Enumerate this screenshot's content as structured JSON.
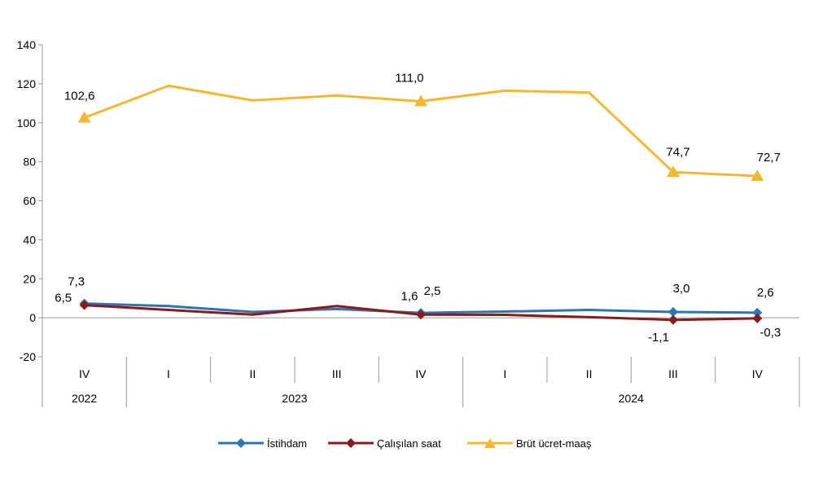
{
  "chart_data": {
    "type": "line",
    "title": "",
    "xlabel": "",
    "ylabel": "",
    "ylim": [
      -20,
      140
    ],
    "yticks": [
      -20,
      0,
      20,
      40,
      60,
      80,
      100,
      120,
      140
    ],
    "categories": [
      "IV",
      "I",
      "II",
      "III",
      "IV",
      "I",
      "II",
      "III",
      "IV"
    ],
    "year_groups": [
      {
        "label": "2022",
        "start": 0,
        "end": 0
      },
      {
        "label": "2023",
        "start": 1,
        "end": 4
      },
      {
        "label": "2024",
        "start": 5,
        "end": 8
      }
    ],
    "grid": false,
    "legend_position": "bottom",
    "series": [
      {
        "name": "İstihdam",
        "color": "#2e75b6",
        "marker": "diamond",
        "values": [
          7.3,
          6.0,
          3.0,
          4.5,
          2.5,
          3.2,
          4.0,
          3.0,
          2.6
        ],
        "labels": [
          "7,3",
          "",
          "",
          "",
          "2,5",
          "",
          "",
          "3,0",
          "2,6"
        ]
      },
      {
        "name": "Çalışılan saat",
        "color": "#8b1a1a",
        "marker": "diamond",
        "values": [
          6.5,
          4.0,
          1.6,
          6.0,
          1.6,
          1.5,
          0.3,
          -1.1,
          -0.3
        ],
        "labels": [
          "6,5",
          "",
          "",
          "",
          "1,6",
          "",
          "",
          "-1,1",
          "-0,3"
        ]
      },
      {
        "name": "Brüt ücret-maaş",
        "color": "#f4b82e",
        "marker": "triangle",
        "values": [
          102.6,
          119.0,
          111.5,
          114.0,
          111.0,
          116.5,
          115.5,
          74.7,
          72.7
        ],
        "labels": [
          "102,6",
          "",
          "",
          "",
          "111,0",
          "",
          "",
          "74,7",
          "72,7"
        ]
      }
    ]
  }
}
